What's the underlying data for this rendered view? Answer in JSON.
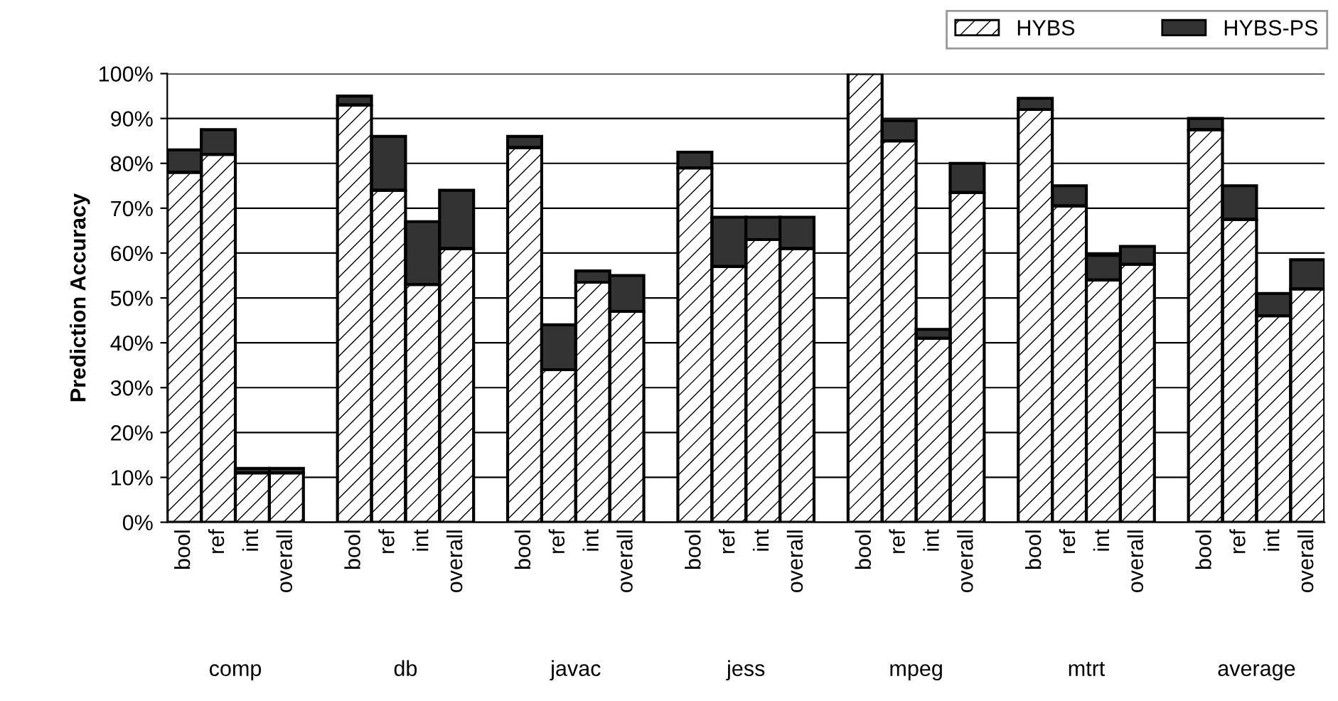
{
  "chart_data": {
    "type": "bar",
    "stacked": true,
    "ylabel": "Prediction Accuracy",
    "categories": [
      "bool",
      "ref",
      "int",
      "overall",
      "bool",
      "ref",
      "int",
      "overall",
      "bool",
      "ref",
      "int",
      "overall",
      "bool",
      "ref",
      "int",
      "overall",
      "bool",
      "ref",
      "int",
      "overall",
      "bool",
      "ref",
      "int",
      "overall",
      "bool",
      "ref",
      "int",
      "overall"
    ],
    "series": [
      {
        "name": "HYBS",
        "color": "#ffffff",
        "values": [
          78,
          82,
          11,
          11,
          93,
          74,
          53,
          61,
          83.5,
          34,
          53.5,
          47,
          79,
          57,
          63,
          61,
          100,
          85,
          41,
          73.5,
          92,
          70.5,
          54,
          57.5,
          87.5,
          67.5,
          46,
          52
        ]
      },
      {
        "name": "HYBS-PS",
        "color": "#333333",
        "values": [
          5,
          5.5,
          1,
          1,
          2,
          12,
          14,
          13,
          2.5,
          10,
          2.5,
          8,
          3.5,
          11,
          5,
          7,
          null,
          4.5,
          2,
          6.5,
          2.5,
          4.5,
          5.5,
          4,
          2.5,
          7.5,
          5,
          6.5
        ]
      }
    ],
    "annotations": [
      "comp",
      "db",
      "javac",
      "jess",
      "mpeg",
      "mtrt",
      "average"
    ],
    "ylim": [
      0,
      100
    ],
    "yticks": [
      {
        "value": 0,
        "label": "0%"
      },
      {
        "value": 10,
        "label": "10%"
      },
      {
        "value": 20,
        "label": "20%"
      },
      {
        "value": 30,
        "label": "30%"
      },
      {
        "value": 40,
        "label": "40%"
      },
      {
        "value": 50,
        "label": "50%"
      },
      {
        "value": 60,
        "label": "60%"
      },
      {
        "value": 70,
        "label": "70%"
      },
      {
        "value": 80,
        "label": "80%"
      },
      {
        "value": 90,
        "label": "90%"
      },
      {
        "value": 100,
        "label": "100%"
      }
    ],
    "grid": "y",
    "legend": "top right"
  }
}
